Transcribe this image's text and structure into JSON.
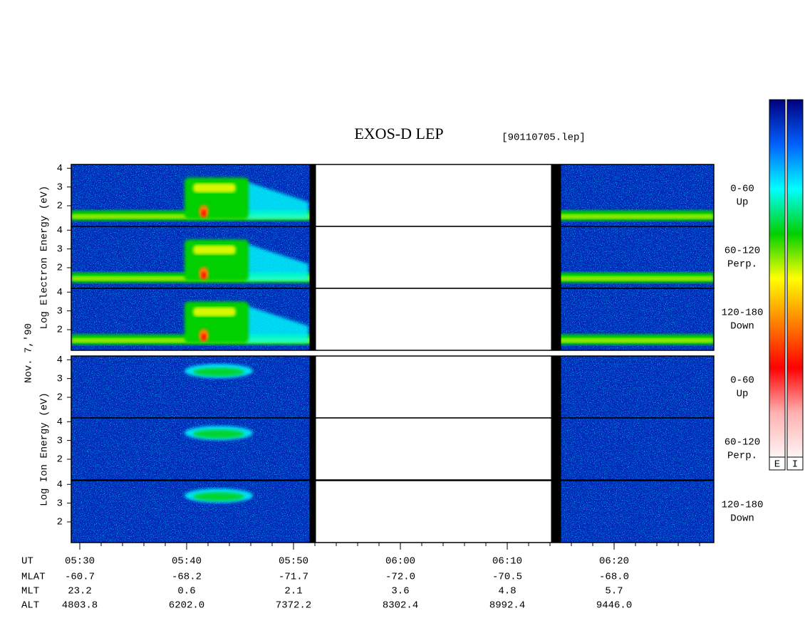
{
  "chart_data": {
    "type": "spectrogram",
    "title": "EXOS-D LEP",
    "file_label": "[90110705.lep]",
    "date_label": "Nov. 7,'90",
    "groups": [
      {
        "ylabel": "Log Electron Energy (eV)",
        "species": "electron",
        "panels": [
          {
            "label": "0-60",
            "direction": "Up"
          },
          {
            "label": "60-120",
            "direction": "Perp."
          },
          {
            "label": "120-180",
            "direction": "Down"
          }
        ]
      },
      {
        "ylabel": "Log Ion Energy (eV)",
        "species": "ion",
        "panels": [
          {
            "label": "0-60",
            "direction": "Up"
          },
          {
            "label": "60-120",
            "direction": "Perp."
          },
          {
            "label": "120-180",
            "direction": "Down"
          }
        ]
      }
    ],
    "ylim": [
      0.9,
      4.2
    ],
    "yticks": [
      2,
      3,
      4
    ],
    "xlim": [
      329.2,
      389.33
    ],
    "xticks": [
      {
        "value": 330,
        "label": "05:30"
      },
      {
        "value": 340,
        "label": "05:40"
      },
      {
        "value": 350,
        "label": "05:50"
      },
      {
        "value": 360,
        "label": "06:00"
      },
      {
        "value": 370,
        "label": "06:10"
      },
      {
        "value": 380,
        "label": "06:20"
      }
    ],
    "data_gap": [
      352.1,
      374.1
    ],
    "orbit_table": {
      "row_labels": [
        "UT",
        "MLAT",
        "MLT",
        "ALT"
      ],
      "rows": [
        [
          "-60.7",
          "-68.2",
          "-71.7",
          "-72.0",
          "-70.5",
          "-68.0"
        ],
        [
          "23.2",
          "0.6",
          "2.1",
          "3.6",
          "4.8",
          "5.7"
        ],
        [
          "4803.8",
          "6202.0",
          "7372.2",
          "8302.4",
          "8992.4",
          "9446.0"
        ]
      ]
    },
    "colorbars": [
      "E",
      "I"
    ],
    "colormap": [
      "#fff4f4",
      "#ffb0b0",
      "#ff0000",
      "#ff8000",
      "#ffff00",
      "#00d000",
      "#00ffff",
      "#0060ff",
      "#000080"
    ]
  }
}
